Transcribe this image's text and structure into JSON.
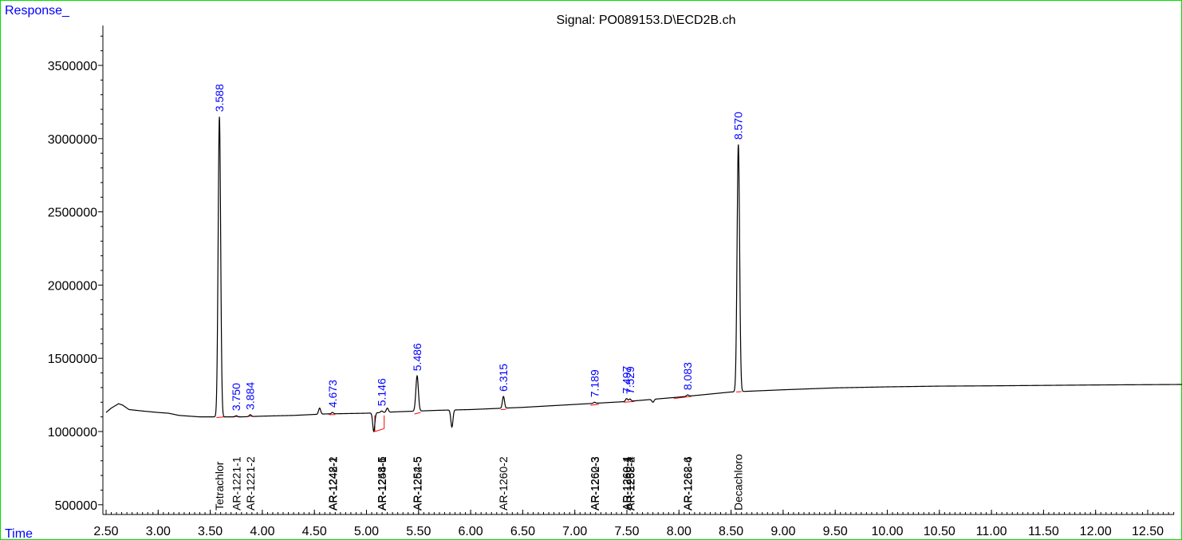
{
  "header": {
    "response_label": "Response_",
    "signal_title": "Signal: PO089153.D\\ECD2B.ch",
    "time_label": "Time"
  },
  "colors": {
    "trace": "#000000",
    "label_blue": "#0000ff",
    "baseline_red": "#ff0000",
    "frame": "#00e000"
  },
  "chart_data": {
    "type": "line",
    "title": "Signal: PO089153.D\\ECD2B.ch",
    "xlabel": "Time",
    "ylabel": "Response_",
    "xlim": [
      2.5,
      13.0
    ],
    "ylim": [
      400000,
      3800000
    ],
    "x_ticks": [
      "2.50",
      "3.00",
      "3.50",
      "4.00",
      "4.50",
      "5.00",
      "5.50",
      "6.00",
      "6.50",
      "7.00",
      "7.50",
      "8.00",
      "8.50",
      "9.00",
      "9.50",
      "10.00",
      "10.50",
      "11.00",
      "11.50",
      "12.00",
      "12.50"
    ],
    "y_ticks": [
      500000,
      1000000,
      1500000,
      2000000,
      2500000,
      3000000,
      3500000
    ],
    "baseline": [
      [
        2.5,
        1130000
      ],
      [
        2.55,
        1160000
      ],
      [
        2.62,
        1190000
      ],
      [
        2.66,
        1180000
      ],
      [
        2.72,
        1150000
      ],
      [
        2.85,
        1140000
      ],
      [
        3.0,
        1130000
      ],
      [
        3.1,
        1125000
      ],
      [
        3.2,
        1110000
      ],
      [
        3.4,
        1100000
      ],
      [
        3.55,
        1100000
      ],
      [
        3.8,
        1100000
      ],
      [
        4.0,
        1105000
      ],
      [
        4.3,
        1110000
      ],
      [
        4.6,
        1120000
      ],
      [
        5.0,
        1125000
      ],
      [
        5.3,
        1135000
      ],
      [
        5.7,
        1145000
      ],
      [
        6.0,
        1150000
      ],
      [
        6.5,
        1165000
      ],
      [
        7.0,
        1185000
      ],
      [
        7.5,
        1205000
      ],
      [
        8.0,
        1235000
      ],
      [
        8.5,
        1270000
      ],
      [
        9.0,
        1285000
      ],
      [
        9.5,
        1298000
      ],
      [
        10.0,
        1305000
      ],
      [
        10.5,
        1310000
      ],
      [
        11.0,
        1312000
      ],
      [
        11.5,
        1315000
      ],
      [
        12.0,
        1318000
      ],
      [
        12.5,
        1320000
      ],
      [
        12.98,
        1322000
      ]
    ],
    "peaks": [
      {
        "rt": 3.588,
        "height": 3150000,
        "width": 0.012
      },
      {
        "rt": 3.75,
        "height": 1108000,
        "width": 0.01
      },
      {
        "rt": 3.884,
        "height": 1115000,
        "width": 0.01
      },
      {
        "rt": 4.55,
        "height": 1160000,
        "width": 0.01
      },
      {
        "rt": 4.673,
        "height": 1130000,
        "width": 0.01
      },
      {
        "rt": 5.07,
        "height": 1000000,
        "width": 0.01
      },
      {
        "rt": 5.146,
        "height": 1140000,
        "width": 0.01
      },
      {
        "rt": 5.2,
        "height": 1160000,
        "width": 0.01
      },
      {
        "rt": 5.486,
        "height": 1380000,
        "width": 0.012
      },
      {
        "rt": 5.82,
        "height": 1030000,
        "width": 0.01
      },
      {
        "rt": 6.315,
        "height": 1240000,
        "width": 0.01
      },
      {
        "rt": 7.189,
        "height": 1200000,
        "width": 0.01
      },
      {
        "rt": 7.497,
        "height": 1225000,
        "width": 0.01
      },
      {
        "rt": 7.529,
        "height": 1222000,
        "width": 0.01
      },
      {
        "rt": 7.75,
        "height": 1200000,
        "width": 0.01
      },
      {
        "rt": 8.083,
        "height": 1250000,
        "width": 0.01
      },
      {
        "rt": 8.57,
        "height": 2960000,
        "width": 0.012
      }
    ],
    "peak_labels": [
      {
        "rt": 3.588,
        "text": "3.588"
      },
      {
        "rt": 3.75,
        "text": "3.750"
      },
      {
        "rt": 3.884,
        "text": "3.884"
      },
      {
        "rt": 4.673,
        "text": "4.673"
      },
      {
        "rt": 5.146,
        "text": "5.146"
      },
      {
        "rt": 5.486,
        "text": "5.486"
      },
      {
        "rt": 6.315,
        "text": "6.315"
      },
      {
        "rt": 7.189,
        "text": "7.189"
      },
      {
        "rt": 7.497,
        "text": "7.497"
      },
      {
        "rt": 7.529,
        "text": "7.529"
      },
      {
        "rt": 8.083,
        "text": "8.083"
      },
      {
        "rt": 8.57,
        "text": "8.570"
      }
    ],
    "compound_labels": [
      {
        "rt": 3.588,
        "text": "Tetrachlor"
      },
      {
        "rt": 3.75,
        "text": "AR-1221-1"
      },
      {
        "rt": 3.884,
        "text": "AR-1221-2"
      },
      {
        "rt": 4.673,
        "text": "AR-1242-1"
      },
      {
        "rt": 4.673,
        "text": "AR-1242-2"
      },
      {
        "rt": 4.673,
        "text": "AR-1248-1"
      },
      {
        "rt": 5.146,
        "text": "AR-1248-5"
      },
      {
        "rt": 5.146,
        "text": "AR-1254-1"
      },
      {
        "rt": 5.146,
        "text": "AR-1248-6"
      },
      {
        "rt": 5.486,
        "text": "AR-1254-5"
      },
      {
        "rt": 5.486,
        "text": "AR-1262-5"
      },
      {
        "rt": 6.315,
        "text": "AR-1260-2"
      },
      {
        "rt": 7.189,
        "text": "AR-1260-3"
      },
      {
        "rt": 7.189,
        "text": "AR-1262-3"
      },
      {
        "rt": 7.497,
        "text": "AR-1260-4"
      },
      {
        "rt": 7.497,
        "text": "AR-1268-1"
      },
      {
        "rt": 7.529,
        "text": "AR-1262-4"
      },
      {
        "rt": 7.529,
        "text": "AR-1268-2"
      },
      {
        "rt": 8.083,
        "text": "AR-1262-6"
      },
      {
        "rt": 8.083,
        "text": "AR-1268-4"
      },
      {
        "rt": 8.57,
        "text": "Decachloro"
      }
    ],
    "integration_baselines": [
      [
        3.56,
        1095000,
        3.64,
        1100000
      ],
      [
        3.72,
        1102000,
        3.78,
        1103000
      ],
      [
        3.86,
        1104000,
        3.91,
        1105000
      ],
      [
        4.64,
        1115000,
        4.7,
        1116000
      ],
      [
        5.08,
        1000000,
        5.17,
        1020000
      ],
      [
        5.17,
        1020000,
        5.17,
        1110000
      ],
      [
        5.08,
        1000000,
        5.08,
        1110000
      ],
      [
        5.46,
        1120000,
        5.52,
        1130000
      ],
      [
        6.29,
        1150000,
        6.34,
        1152000
      ],
      [
        7.15,
        1180000,
        7.23,
        1185000
      ],
      [
        7.47,
        1200000,
        7.57,
        1205000
      ],
      [
        7.95,
        1225000,
        8.12,
        1240000
      ],
      [
        8.55,
        1270000,
        8.6,
        1272000
      ]
    ]
  }
}
